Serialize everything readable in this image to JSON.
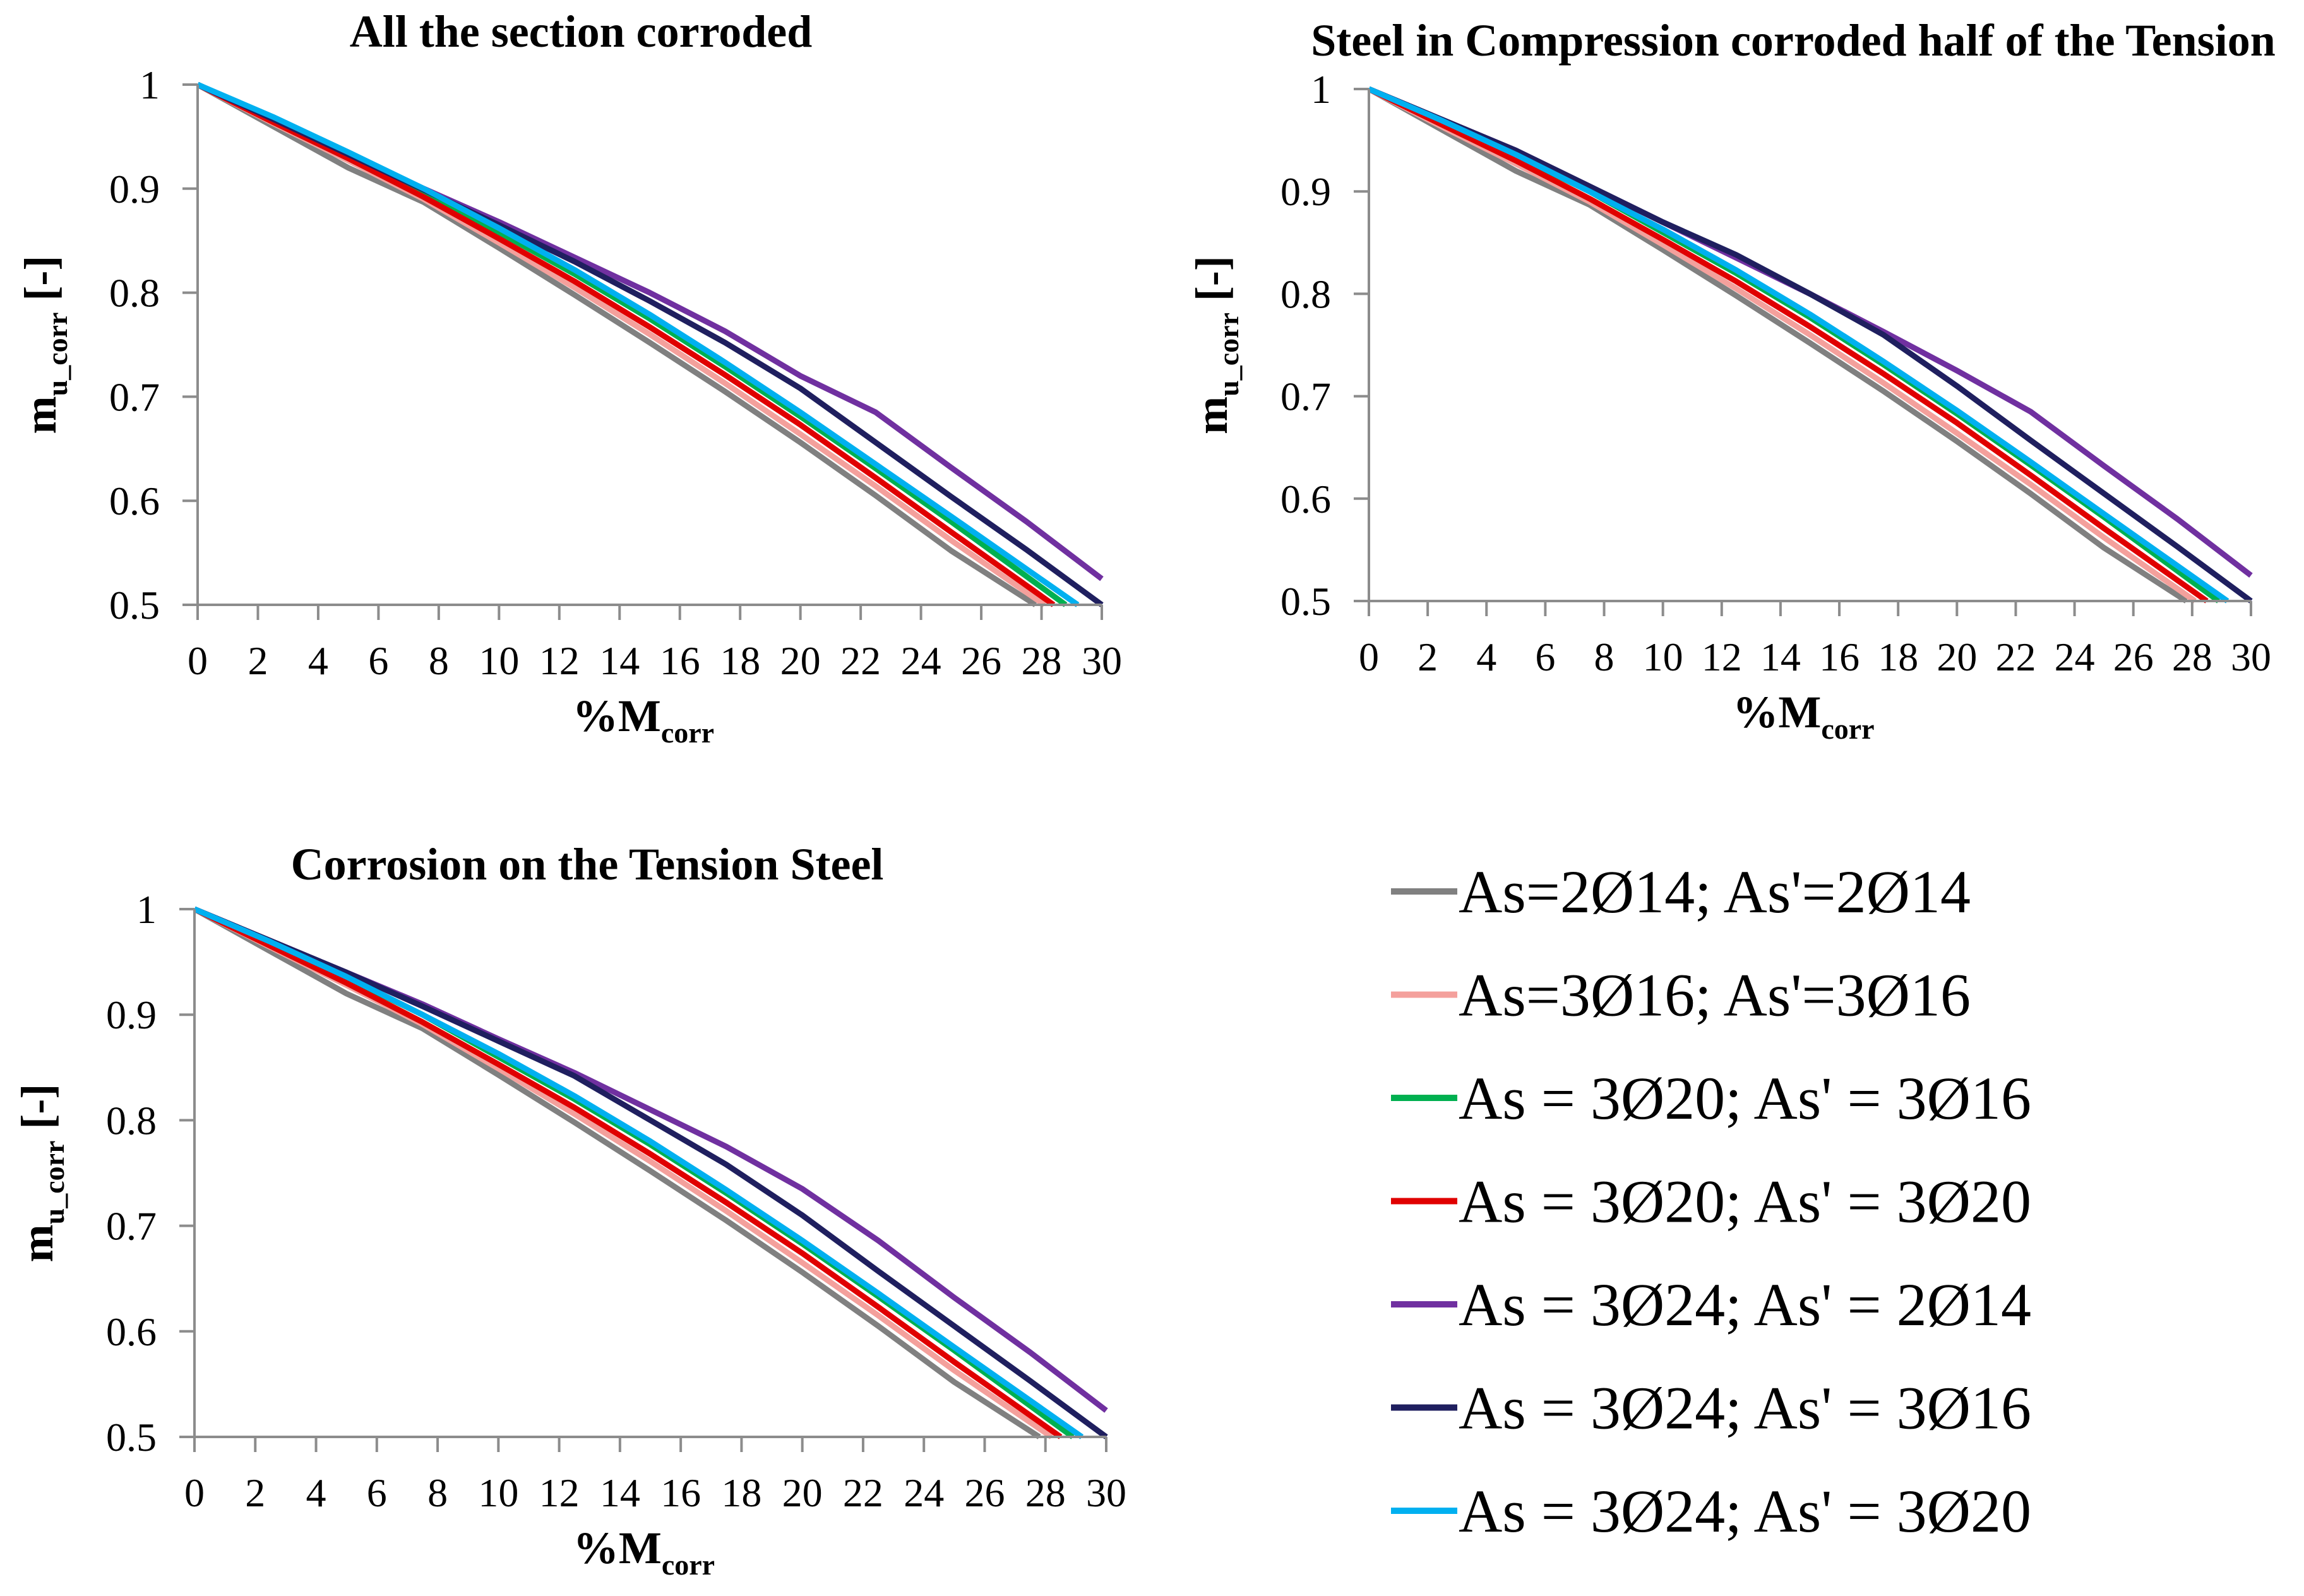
{
  "chart_data": [
    {
      "type": "line",
      "title": "All the section corroded",
      "xlabel": {
        "main": "%M",
        "sub": "corr"
      },
      "ylabel": {
        "main": "m",
        "sub": "u_corr",
        "suffix": " [-]"
      },
      "xlim": [
        0,
        30
      ],
      "ylim": [
        0.5,
        1
      ],
      "xticks": [
        0,
        2,
        4,
        6,
        8,
        10,
        12,
        14,
        16,
        18,
        20,
        22,
        24,
        26,
        28,
        30
      ],
      "yticks": [
        {
          "value": 0.5,
          "label": "0.5"
        },
        {
          "value": 0.6,
          "label": "0.6"
        },
        {
          "value": 0.7,
          "label": "0.7"
        },
        {
          "value": 0.8,
          "label": "0.8"
        },
        {
          "value": 0.9,
          "label": "0.9"
        },
        {
          "value": 1.0,
          "label": "1"
        }
      ],
      "series": [
        {
          "name": "As=2Ø14; As'=2Ø14",
          "color": "#808080",
          "x": [
            0,
            2.5,
            5,
            7.5,
            10,
            12.5,
            15,
            17.5,
            20,
            22.5,
            25,
            27.8
          ],
          "y": [
            1,
            0.96,
            0.92,
            0.887,
            0.843,
            0.798,
            0.752,
            0.705,
            0.656,
            0.605,
            0.552,
            0.5
          ]
        },
        {
          "name": "As=3Ø16; As'=3Ø16",
          "color": "#F4A09C",
          "x": [
            0,
            2.5,
            5,
            7.5,
            10,
            12.5,
            15,
            17.5,
            20,
            22.5,
            25,
            28.1
          ],
          "y": [
            1,
            0.963,
            0.927,
            0.89,
            0.848,
            0.805,
            0.76,
            0.713,
            0.664,
            0.614,
            0.562,
            0.5
          ]
        },
        {
          "name": "As = 3Ø20; As' = 3Ø16",
          "color": "#00B050",
          "x": [
            0,
            2.5,
            5,
            7.5,
            10,
            12.5,
            15,
            17.5,
            20,
            22.5,
            25,
            28.8
          ],
          "y": [
            1,
            0.966,
            0.932,
            0.897,
            0.858,
            0.818,
            0.775,
            0.729,
            0.681,
            0.631,
            0.58,
            0.5
          ]
        },
        {
          "name": "As = 3Ø20; As' = 3Ø20",
          "color": "#E00000",
          "x": [
            0,
            2.5,
            5,
            7.5,
            10,
            12.5,
            15,
            17.5,
            20,
            22.5,
            25,
            28.4
          ],
          "y": [
            1,
            0.964,
            0.929,
            0.892,
            0.852,
            0.811,
            0.767,
            0.721,
            0.673,
            0.622,
            0.57,
            0.5
          ]
        },
        {
          "name": "As = 3Ø24; As' = 2Ø14",
          "color": "#7030A0",
          "x": [
            0,
            2.5,
            5,
            7.5,
            10,
            12.5,
            15,
            17.5,
            20,
            22.5,
            25,
            27.5,
            30
          ],
          "y": [
            1,
            0.967,
            0.934,
            0.9,
            0.868,
            0.834,
            0.8,
            0.763,
            0.72,
            0.685,
            0.632,
            0.58,
            0.525
          ]
        },
        {
          "name": "As = 3Ø24; As' = 3Ø16",
          "color": "#1F1F5F",
          "x": [
            0,
            2.5,
            5,
            7.5,
            10,
            12.5,
            15,
            17.5,
            20,
            22.5,
            25,
            27.5,
            30
          ],
          "y": [
            1,
            0.967,
            0.933,
            0.899,
            0.865,
            0.83,
            0.792,
            0.752,
            0.708,
            0.656,
            0.604,
            0.553,
            0.5
          ]
        },
        {
          "name": "As = 3Ø24; As' = 3Ø20",
          "color": "#00B0F0",
          "x": [
            0,
            2.5,
            5,
            7.5,
            10,
            12.5,
            15,
            17.5,
            20,
            22.5,
            25,
            29.2
          ],
          "y": [
            1,
            0.969,
            0.935,
            0.9,
            0.862,
            0.822,
            0.779,
            0.733,
            0.685,
            0.635,
            0.585,
            0.5
          ]
        }
      ]
    },
    {
      "type": "line",
      "title": "Steel in Compression corroded half of the Tension",
      "xlabel": {
        "main": "%M",
        "sub": "corr"
      },
      "ylabel": {
        "main": "m",
        "sub": "u_corr",
        "suffix": " [-]"
      },
      "xlim": [
        0,
        30
      ],
      "ylim": [
        0.5,
        1
      ],
      "xticks": [
        0,
        2,
        4,
        6,
        8,
        10,
        12,
        14,
        16,
        18,
        20,
        22,
        24,
        26,
        28,
        30
      ],
      "yticks": [
        {
          "value": 0.5,
          "label": "0.5"
        },
        {
          "value": 0.6,
          "label": "0.6"
        },
        {
          "value": 0.7,
          "label": "0.7"
        },
        {
          "value": 0.8,
          "label": "0.8"
        },
        {
          "value": 0.9,
          "label": "0.9"
        },
        {
          "value": 1.0,
          "label": "1"
        }
      ],
      "series": [
        {
          "name": "As=2Ø14; As'=2Ø14",
          "color": "#808080",
          "x": [
            0,
            2.5,
            5,
            7.5,
            10,
            12.5,
            15,
            17.5,
            20,
            22.5,
            25,
            27.8
          ],
          "y": [
            1,
            0.96,
            0.92,
            0.887,
            0.843,
            0.798,
            0.752,
            0.705,
            0.656,
            0.605,
            0.552,
            0.5
          ]
        },
        {
          "name": "As=3Ø16; As'=3Ø16",
          "color": "#F4A09C",
          "x": [
            0,
            2.5,
            5,
            7.5,
            10,
            12.5,
            15,
            17.5,
            20,
            22.5,
            25,
            28.1
          ],
          "y": [
            1,
            0.963,
            0.927,
            0.89,
            0.848,
            0.805,
            0.76,
            0.713,
            0.664,
            0.614,
            0.562,
            0.5
          ]
        },
        {
          "name": "As = 3Ø20; As' = 3Ø16",
          "color": "#00B050",
          "x": [
            0,
            2.5,
            5,
            7.5,
            10,
            12.5,
            15,
            17.5,
            20,
            22.5,
            25,
            28.9
          ],
          "y": [
            1,
            0.968,
            0.935,
            0.9,
            0.86,
            0.82,
            0.777,
            0.731,
            0.683,
            0.633,
            0.582,
            0.5
          ]
        },
        {
          "name": "As = 3Ø20; As' = 3Ø20",
          "color": "#E00000",
          "x": [
            0,
            2.5,
            5,
            7.5,
            10,
            12.5,
            15,
            17.5,
            20,
            22.5,
            25,
            28.5
          ],
          "y": [
            1,
            0.965,
            0.93,
            0.893,
            0.853,
            0.812,
            0.768,
            0.722,
            0.674,
            0.623,
            0.571,
            0.5
          ]
        },
        {
          "name": "As = 3Ø24; As' = 2Ø14",
          "color": "#7030A0",
          "x": [
            0,
            2.5,
            5,
            7.5,
            10,
            12.5,
            15,
            17.5,
            20,
            22.5,
            25,
            27.5,
            30
          ],
          "y": [
            1,
            0.97,
            0.94,
            0.905,
            0.87,
            0.835,
            0.8,
            0.763,
            0.725,
            0.685,
            0.632,
            0.58,
            0.525
          ]
        },
        {
          "name": "As = 3Ø24; As' = 3Ø16",
          "color": "#1F1F5F",
          "x": [
            0,
            2.5,
            5,
            7.5,
            10,
            12.5,
            15,
            17.5,
            20,
            22.5,
            25,
            27.5,
            30
          ],
          "y": [
            1,
            0.97,
            0.94,
            0.905,
            0.87,
            0.838,
            0.8,
            0.76,
            0.71,
            0.657,
            0.605,
            0.553,
            0.5
          ]
        },
        {
          "name": "As = 3Ø24; As' = 3Ø20",
          "color": "#00B0F0",
          "x": [
            0,
            2.5,
            5,
            7.5,
            10,
            12.5,
            15,
            17.5,
            20,
            22.5,
            25,
            29.2
          ],
          "y": [
            1,
            0.969,
            0.936,
            0.9,
            0.863,
            0.823,
            0.78,
            0.734,
            0.686,
            0.636,
            0.585,
            0.5
          ]
        }
      ]
    },
    {
      "type": "line",
      "title": "Corrosion on the Tension Steel",
      "xlabel": {
        "main": "%M",
        "sub": "corr"
      },
      "ylabel": {
        "main": "m",
        "sub": "u_corr",
        "suffix": " [-]"
      },
      "xlim": [
        0,
        30
      ],
      "ylim": [
        0.5,
        1
      ],
      "xticks": [
        0,
        2,
        4,
        6,
        8,
        10,
        12,
        14,
        16,
        18,
        20,
        22,
        24,
        26,
        28,
        30
      ],
      "yticks": [
        {
          "value": 0.5,
          "label": "0.5"
        },
        {
          "value": 0.6,
          "label": "0.6"
        },
        {
          "value": 0.7,
          "label": "0.7"
        },
        {
          "value": 0.8,
          "label": "0.8"
        },
        {
          "value": 0.9,
          "label": "0.9"
        },
        {
          "value": 1.0,
          "label": "1"
        }
      ],
      "series": [
        {
          "name": "As=2Ø14; As'=2Ø14",
          "color": "#808080",
          "x": [
            0,
            2.5,
            5,
            7.5,
            10,
            12.5,
            15,
            17.5,
            20,
            22.5,
            25,
            27.8
          ],
          "y": [
            1,
            0.96,
            0.92,
            0.887,
            0.843,
            0.798,
            0.752,
            0.705,
            0.656,
            0.605,
            0.552,
            0.5
          ]
        },
        {
          "name": "As=3Ø16; As'=3Ø16",
          "color": "#F4A09C",
          "x": [
            0,
            2.5,
            5,
            7.5,
            10,
            12.5,
            15,
            17.5,
            20,
            22.5,
            25,
            28.2
          ],
          "y": [
            1,
            0.964,
            0.928,
            0.891,
            0.849,
            0.806,
            0.761,
            0.714,
            0.665,
            0.615,
            0.563,
            0.5
          ]
        },
        {
          "name": "As = 3Ø20; As' = 3Ø16",
          "color": "#00B050",
          "x": [
            0,
            2.5,
            5,
            7.5,
            10,
            12.5,
            15,
            17.5,
            20,
            22.5,
            25,
            28.9
          ],
          "y": [
            1,
            0.968,
            0.935,
            0.9,
            0.86,
            0.82,
            0.777,
            0.731,
            0.683,
            0.633,
            0.582,
            0.5
          ]
        },
        {
          "name": "As = 3Ø20; As' = 3Ø20",
          "color": "#E00000",
          "x": [
            0,
            2.5,
            5,
            7.5,
            10,
            12.5,
            15,
            17.5,
            20,
            22.5,
            25,
            28.5
          ],
          "y": [
            1,
            0.965,
            0.93,
            0.893,
            0.853,
            0.812,
            0.768,
            0.722,
            0.674,
            0.623,
            0.571,
            0.5
          ]
        },
        {
          "name": "As = 3Ø24; As' = 2Ø14",
          "color": "#7030A0",
          "x": [
            0,
            2.5,
            5,
            7.5,
            10,
            12.5,
            15,
            17.5,
            20,
            22.5,
            25,
            27.5,
            30
          ],
          "y": [
            1,
            0.97,
            0.94,
            0.91,
            0.877,
            0.845,
            0.81,
            0.775,
            0.735,
            0.686,
            0.632,
            0.58,
            0.525
          ]
        },
        {
          "name": "As = 3Ø24; As' = 3Ø16",
          "color": "#1F1F5F",
          "x": [
            0,
            2.5,
            5,
            7.5,
            10,
            12.5,
            15,
            17.5,
            20,
            22.5,
            25,
            27.5,
            30
          ],
          "y": [
            1,
            0.97,
            0.94,
            0.908,
            0.875,
            0.842,
            0.8,
            0.758,
            0.71,
            0.657,
            0.605,
            0.553,
            0.5
          ]
        },
        {
          "name": "As = 3Ø24; As' = 3Ø20",
          "color": "#00B0F0",
          "x": [
            0,
            2.5,
            5,
            7.5,
            10,
            12.5,
            15,
            17.5,
            20,
            22.5,
            25,
            29.2
          ],
          "y": [
            1,
            0.969,
            0.936,
            0.9,
            0.863,
            0.823,
            0.78,
            0.734,
            0.686,
            0.636,
            0.585,
            0.5
          ]
        }
      ]
    }
  ],
  "legend": {
    "position": "bottom-right",
    "entries": [
      {
        "label": "As=2Ø14; As'=2Ø14",
        "color": "#808080"
      },
      {
        "label": "As=3Ø16; As'=3Ø16",
        "color": "#F4A09C"
      },
      {
        "label": "As = 3Ø20; As' = 3Ø16",
        "color": "#00B050"
      },
      {
        "label": "As = 3Ø20; As' = 3Ø20",
        "color": "#E00000"
      },
      {
        "label": "As = 3Ø24; As' = 2Ø14",
        "color": "#7030A0"
      },
      {
        "label": "As = 3Ø24; As' = 3Ø16",
        "color": "#1F1F5F"
      },
      {
        "label": "As = 3Ø24; As' = 3Ø20",
        "color": "#00B0F0"
      }
    ]
  }
}
